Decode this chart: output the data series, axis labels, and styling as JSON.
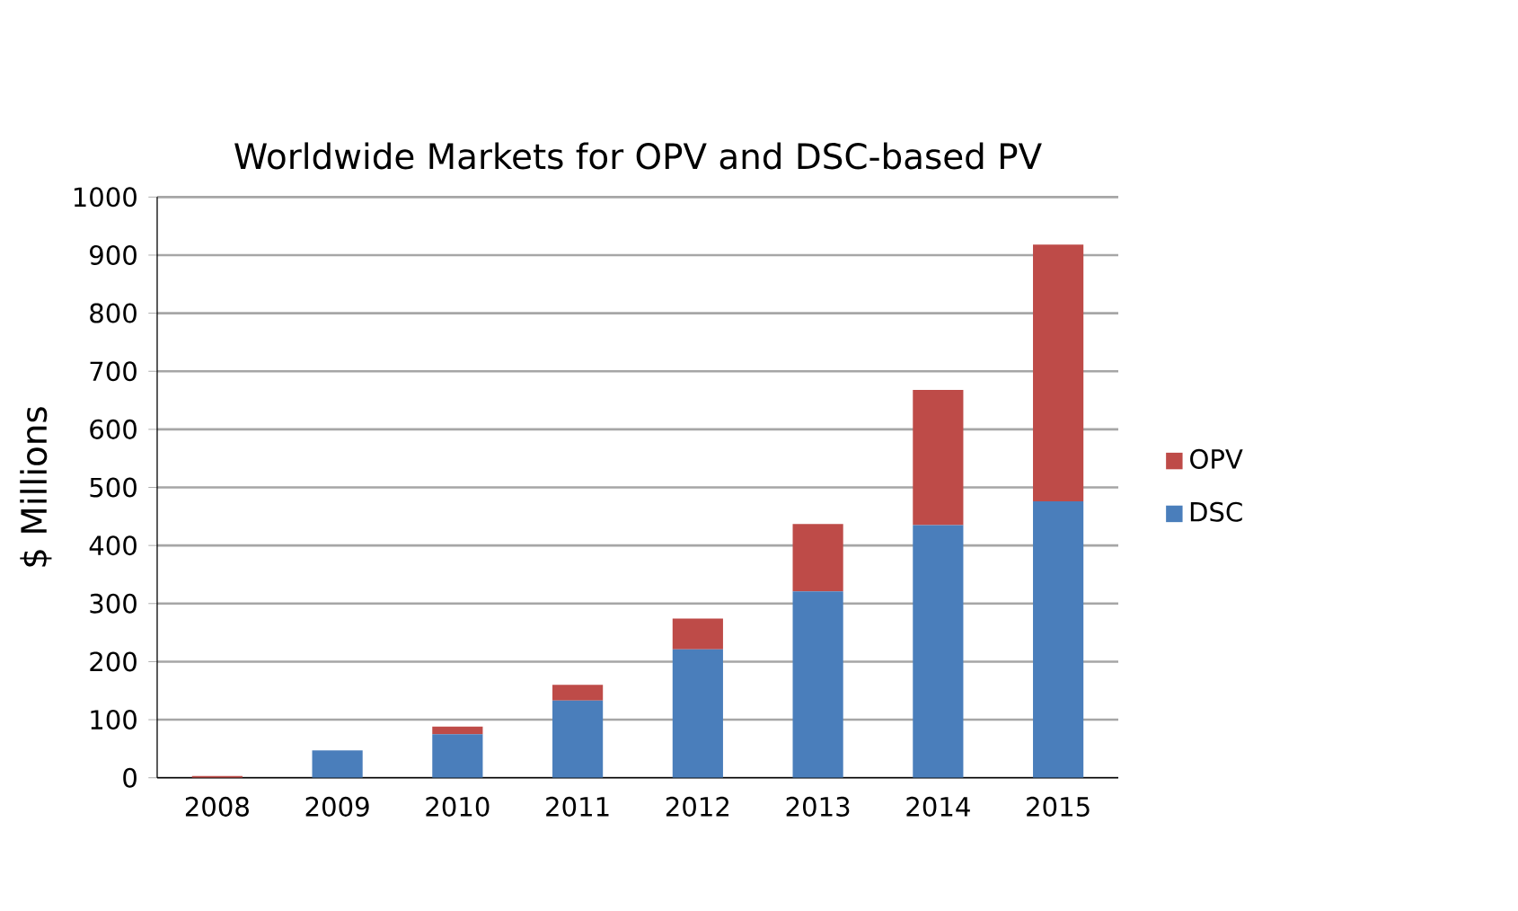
{
  "chart_data": {
    "type": "bar",
    "title": "Worldwide Markets for OPV and DSC-based PV",
    "ylabel": "$ Millions",
    "categories": [
      "2008",
      "2009",
      "2010",
      "2011",
      "2012",
      "2013",
      "2014",
      "2015"
    ],
    "stacked": true,
    "series": [
      {
        "name": "DSC",
        "color": "#4a7ebb",
        "values": [
          null,
          47,
          75,
          133,
          221,
          321,
          435,
          476
        ]
      },
      {
        "name": "OPV",
        "color": "#be4b48",
        "values": [
          3,
          0,
          13,
          27,
          53,
          116,
          233,
          442
        ]
      }
    ],
    "ylim": [
      0,
      1000
    ],
    "yticks": [
      0,
      100,
      200,
      300,
      400,
      500,
      600,
      700,
      800,
      900,
      1000
    ],
    "grid": "y",
    "legend": "right"
  }
}
